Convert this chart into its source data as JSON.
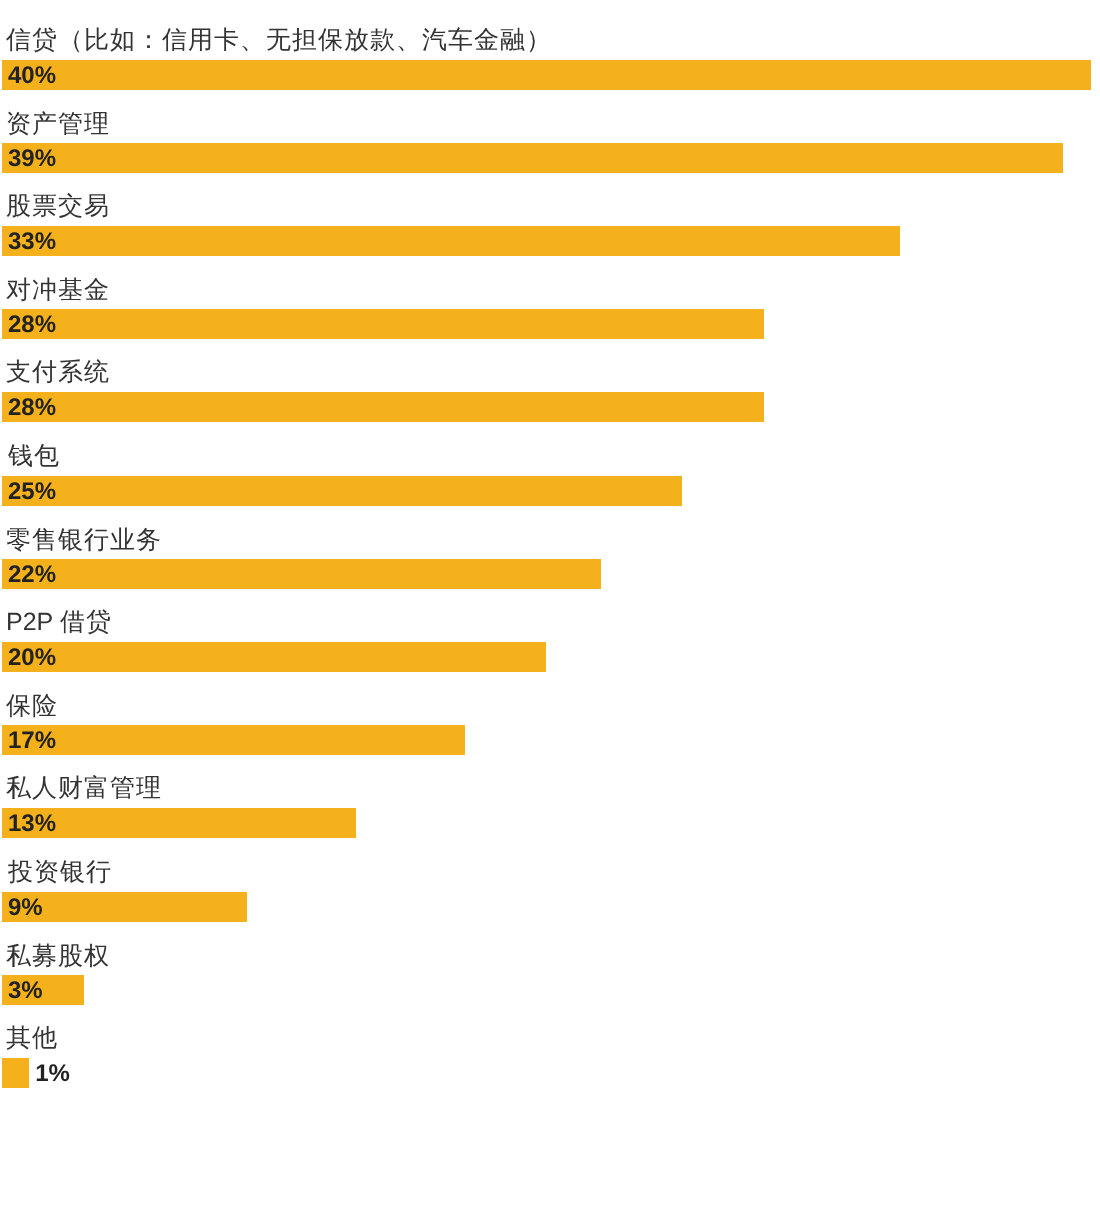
{
  "chart_data": {
    "type": "bar",
    "orientation": "horizontal",
    "categories": [
      "信贷（比如：信用卡、无担保放款、汽车金融）",
      "资产管理",
      "股票交易",
      "对冲基金",
      "支付系统",
      "钱包",
      "零售银行业务",
      "P2P 借贷",
      "保险",
      "私人财富管理",
      "投资银行",
      "私募股权",
      "其他"
    ],
    "values": [
      40,
      39,
      33,
      28,
      28,
      25,
      22,
      20,
      17,
      13,
      9,
      3,
      1
    ],
    "value_labels": [
      "40%",
      "39%",
      "33%",
      "28%",
      "28%",
      "25%",
      "22%",
      "20%",
      "17%",
      "13%",
      "9%",
      "3%",
      "1%"
    ],
    "color": "#f4b11b",
    "xlim": [
      0,
      40.2
    ],
    "tick_labels": false
  }
}
